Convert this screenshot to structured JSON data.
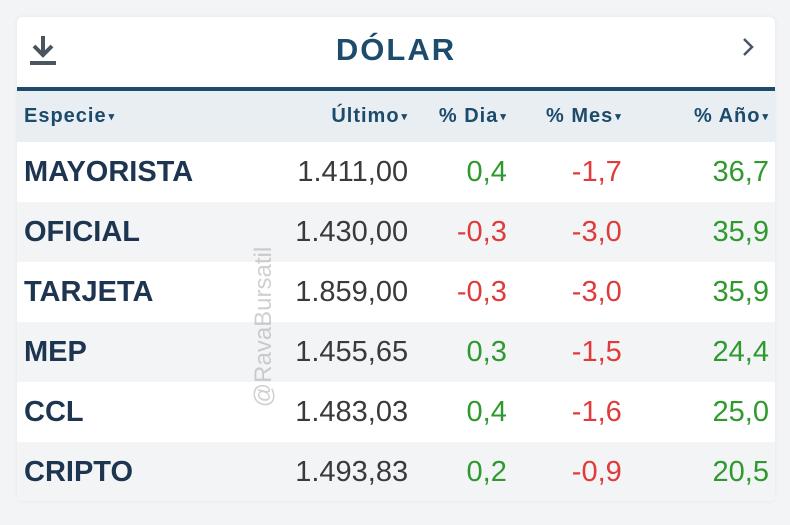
{
  "widget": {
    "title": "DÓLAR",
    "download_icon": "download-icon",
    "next_icon": "chevron-right-icon"
  },
  "table": {
    "headers": [
      "Especie",
      "Último",
      "% Dia",
      "% Mes",
      "% Año"
    ],
    "sort_indicator": "▾",
    "rows": [
      {
        "especie": "MAYORISTA",
        "ultimo": "1.411,00",
        "dia": "0,4",
        "mes": "-1,7",
        "anio": "36,7"
      },
      {
        "especie": "OFICIAL",
        "ultimo": "1.430,00",
        "dia": "-0,3",
        "mes": "-3,0",
        "anio": "35,9"
      },
      {
        "especie": "TARJETA",
        "ultimo": "1.859,00",
        "dia": "-0,3",
        "mes": "-3,0",
        "anio": "35,9"
      },
      {
        "especie": "MEP",
        "ultimo": "1.455,65",
        "dia": "0,3",
        "mes": "-1,5",
        "anio": "24,4"
      },
      {
        "especie": "CCL",
        "ultimo": "1.483,03",
        "dia": "0,4",
        "mes": "-1,6",
        "anio": "25,0"
      },
      {
        "especie": "CRIPTO",
        "ultimo": "1.493,83",
        "dia": "0,2",
        "mes": "-0,9",
        "anio": "20,5"
      }
    ]
  },
  "watermark": "@RavaBursatil",
  "colors": {
    "brand": "#1d4b6c",
    "positive": "#2e9a2e",
    "negative": "#e03a3a"
  }
}
